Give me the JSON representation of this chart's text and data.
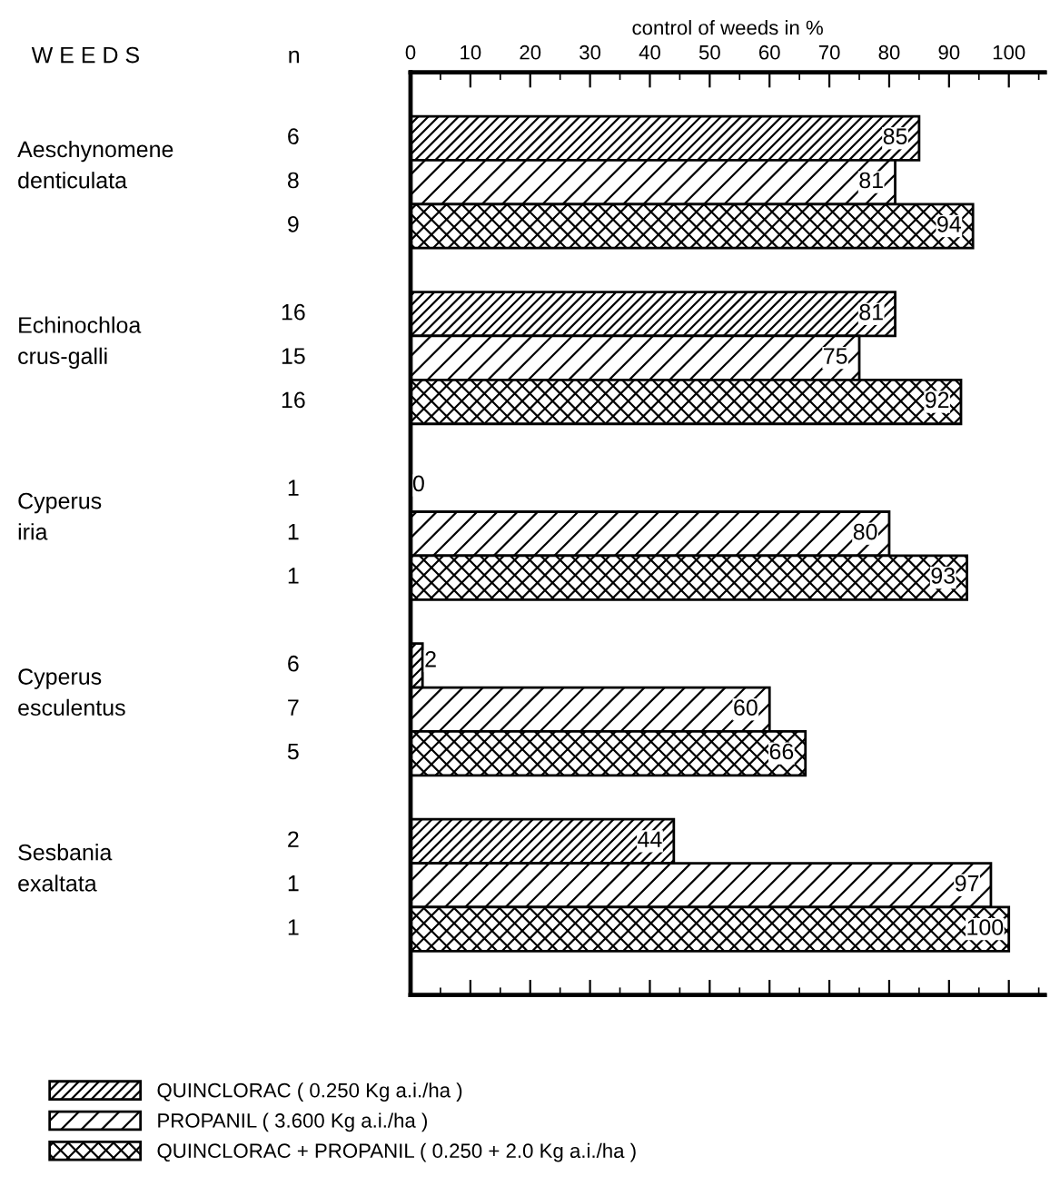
{
  "chart_data": {
    "type": "bar",
    "orientation": "horizontal",
    "categories": [
      "Aeschynomene\ndenticulata",
      "Echinochloa\ncrus-galli",
      "Cyperus\niria",
      "Cyperus\nesculentus",
      "Sesbania\nexaltata"
    ],
    "series": [
      {
        "name": "QUINCLORAC ( 0.250 Kg a.i./ha )",
        "color": "#000000",
        "values": [
          85,
          81,
          0,
          2,
          44
        ]
      },
      {
        "name": "PROPANIL ( 3.600 Kg a.i./ha )",
        "color": "#000000",
        "values": [
          81,
          75,
          80,
          60,
          97
        ]
      },
      {
        "name": "QUINCLORAC + PROPANIL ( 0.250 + 2.0 Kg a.i./ha )",
        "color": "#000000",
        "values": [
          94,
          92,
          93,
          66,
          100
        ]
      }
    ],
    "data_labels": true,
    "xlim": [
      0,
      106
    ],
    "xticks": [
      {
        "value": 0,
        "label": null
      },
      {
        "value": 10,
        "label": null
      },
      {
        "value": 20,
        "label": null
      },
      {
        "value": 30,
        "label": null
      },
      {
        "value": 40,
        "label": null
      },
      {
        "value": 50,
        "label": null
      },
      {
        "value": 60,
        "label": null
      },
      {
        "value": 70,
        "label": null
      },
      {
        "value": 80,
        "label": null
      },
      {
        "value": 90,
        "label": null
      },
      {
        "value": 100,
        "label": null
      }
    ],
    "x2lim": [
      0,
      106
    ],
    "x2ticks": [
      0,
      10,
      20,
      30,
      40,
      50,
      60,
      70,
      80,
      90,
      100
    ],
    "x2label": "control of weeds in %",
    "annotations": [
      "W E E D S",
      "n",
      "6",
      "8",
      "9",
      "16",
      "15",
      "16",
      "1",
      "1",
      "1",
      "6",
      "7",
      "5",
      "2",
      "1",
      "1"
    ],
    "legend": "bottom",
    "grid": false
  }
}
